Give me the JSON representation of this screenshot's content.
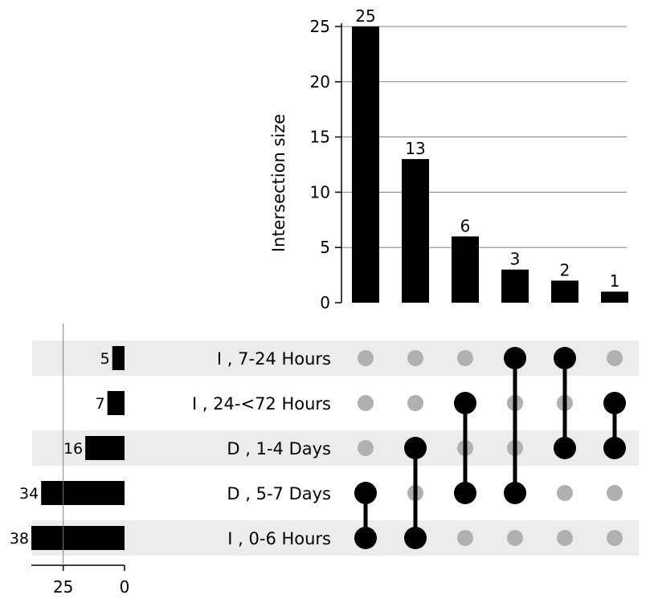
{
  "chart_data": {
    "type": "upset",
    "ylabel": "Intersection size",
    "ylim": [
      0,
      26
    ],
    "yticks": [
      0,
      5,
      10,
      15,
      20,
      25
    ],
    "grid": true,
    "intersections": [
      {
        "size": 25,
        "members": [
          "D , 5-7 Days",
          "I , 0-6 Hours"
        ]
      },
      {
        "size": 13,
        "members": [
          "D , 1-4 Days",
          "I , 0-6 Hours"
        ]
      },
      {
        "size": 6,
        "members": [
          "I , 24-<72 Hours",
          "D , 5-7 Days"
        ]
      },
      {
        "size": 3,
        "members": [
          "I , 7-24 Hours",
          "D , 5-7 Days"
        ]
      },
      {
        "size": 2,
        "members": [
          "I , 7-24 Hours",
          "D , 1-4 Days"
        ]
      },
      {
        "size": 1,
        "members": [
          "I , 24-<72 Hours",
          "D , 1-4 Days"
        ]
      }
    ],
    "sets": [
      {
        "name": "I , 7-24 Hours",
        "size": 5
      },
      {
        "name": "I , 24-<72 Hours",
        "size": 7
      },
      {
        "name": "D , 1-4 Days",
        "size": 16
      },
      {
        "name": "D , 5-7 Days",
        "size": 34
      },
      {
        "name": "I , 0-6 Hours",
        "size": 38
      }
    ],
    "set_size_axis": {
      "xlim": [
        38,
        0
      ],
      "xticks": [
        25,
        0
      ]
    },
    "colors": {
      "bar": "#000000",
      "dot_active": "#000000",
      "dot_inactive": "#b0b0b0",
      "stripe": "#ececec",
      "grid": "#808080"
    }
  }
}
